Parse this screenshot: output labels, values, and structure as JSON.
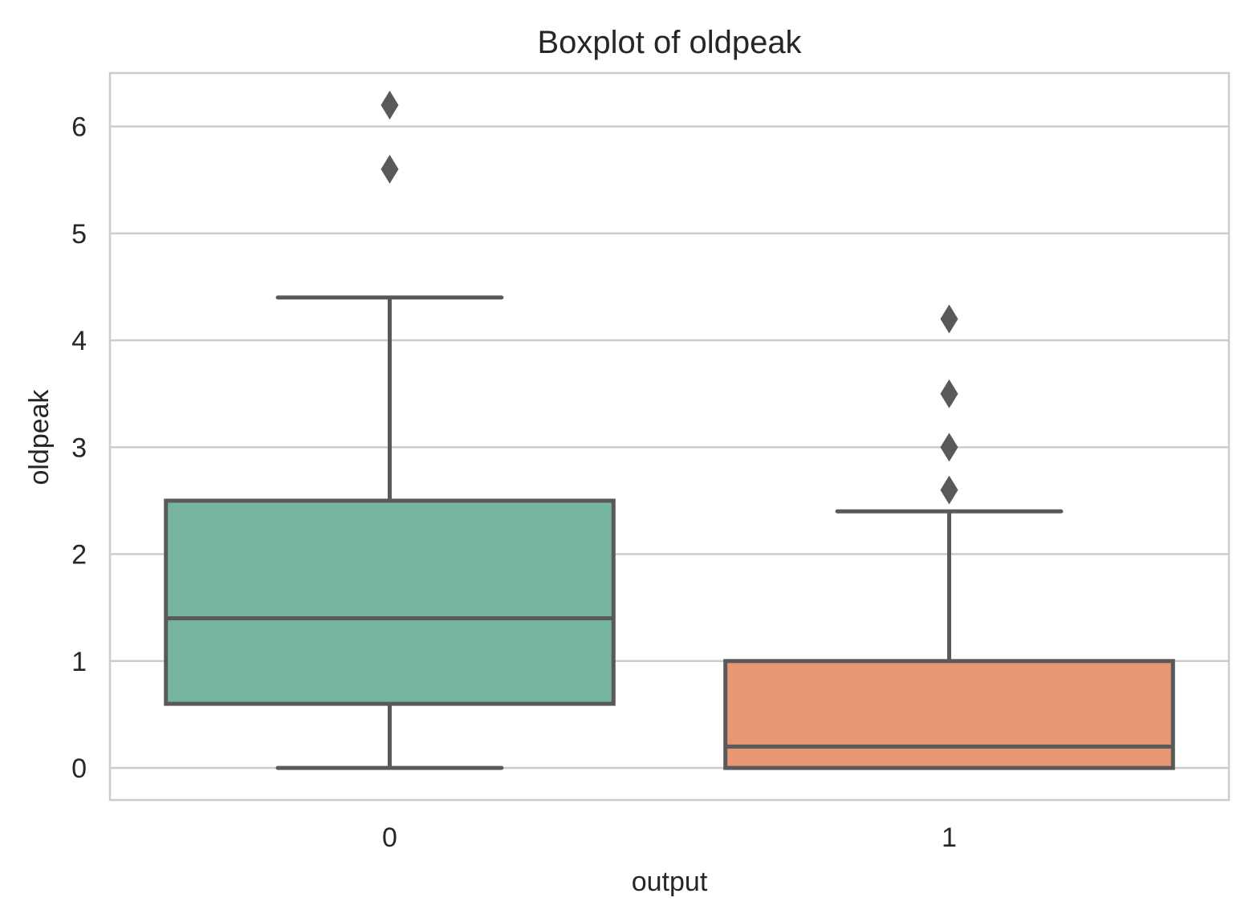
{
  "chart_data": {
    "type": "box",
    "title": "Boxplot of oldpeak",
    "xlabel": "output",
    "ylabel": "oldpeak",
    "ylim": [
      -0.3,
      6.5
    ],
    "yticks": [
      0,
      1,
      2,
      3,
      4,
      5,
      6
    ],
    "grid": true,
    "categories": [
      "0",
      "1"
    ],
    "boxes": [
      {
        "category": "0",
        "whisker_low": 0.0,
        "q1": 0.6,
        "median": 1.4,
        "q3": 2.5,
        "whisker_high": 4.4,
        "outliers": [
          5.6,
          6.2
        ],
        "color": "#75b5a0"
      },
      {
        "category": "1",
        "whisker_low": 0.0,
        "q1": 0.0,
        "median": 0.2,
        "q3": 1.0,
        "whisker_high": 2.4,
        "outliers": [
          2.6,
          3.0,
          3.5,
          4.2
        ],
        "color": "#e89775"
      }
    ],
    "line_color": "#595959",
    "grid_color": "#cccccc"
  }
}
